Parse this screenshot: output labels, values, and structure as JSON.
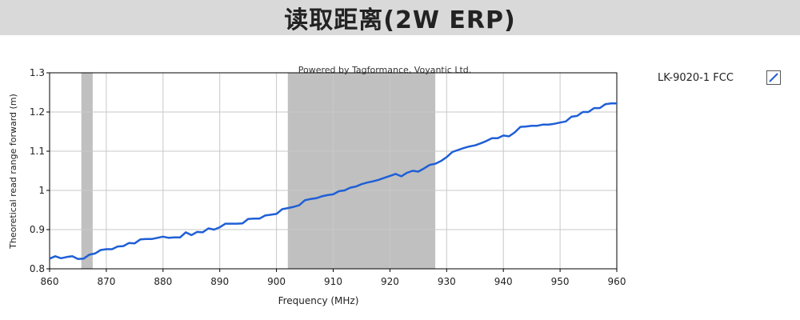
{
  "banner": {
    "title": "读取距离(2W ERP)"
  },
  "chart_data": {
    "type": "line",
    "title": "",
    "watermark": "Powered by Tagformance, Voyantic Ltd.",
    "xlabel": "Frequency (MHz)",
    "ylabel": "Theoretical read range forward (m)",
    "xlim": [
      860,
      960
    ],
    "ylim": [
      0.8,
      1.3
    ],
    "xticks": [
      860,
      870,
      880,
      890,
      900,
      910,
      920,
      930,
      940,
      950,
      960
    ],
    "yticks": [
      0.8,
      0.9,
      1,
      1.1,
      1.2,
      1.3
    ],
    "ytick_labels": [
      "0.8",
      "0.9",
      "1",
      "1.1",
      "1.2",
      "1.3"
    ],
    "grid": true,
    "legend_position": "right",
    "shaded_bands": [
      [
        865.6,
        867.6
      ],
      [
        902,
        928
      ]
    ],
    "band_color": "#c0c0c0",
    "series": [
      {
        "name": "LK-9020-1 FCC",
        "color": "#1f5fd6",
        "x": [
          860,
          861,
          862,
          863,
          864,
          865,
          866,
          867,
          868,
          869,
          870,
          871,
          872,
          873,
          874,
          875,
          876,
          877,
          878,
          879,
          880,
          881,
          882,
          883,
          884,
          885,
          886,
          887,
          888,
          889,
          890,
          891,
          892,
          893,
          894,
          895,
          896,
          897,
          898,
          899,
          900,
          901,
          902,
          903,
          904,
          905,
          906,
          907,
          908,
          909,
          910,
          911,
          912,
          913,
          914,
          915,
          916,
          917,
          918,
          919,
          920,
          921,
          922,
          923,
          924,
          925,
          926,
          927,
          928,
          929,
          930,
          931,
          932,
          933,
          934,
          935,
          936,
          937,
          938,
          939,
          940,
          941,
          942,
          943,
          944,
          945,
          946,
          947,
          948,
          949,
          950,
          951,
          952,
          953,
          954,
          955,
          956,
          957,
          958,
          959,
          960
        ],
        "y": [
          0.826,
          0.832,
          0.827,
          0.83,
          0.832,
          0.825,
          0.826,
          0.836,
          0.839,
          0.848,
          0.85,
          0.85,
          0.857,
          0.858,
          0.866,
          0.865,
          0.875,
          0.876,
          0.876,
          0.879,
          0.882,
          0.879,
          0.88,
          0.88,
          0.893,
          0.886,
          0.894,
          0.893,
          0.903,
          0.9,
          0.906,
          0.915,
          0.915,
          0.915,
          0.916,
          0.927,
          0.928,
          0.928,
          0.936,
          0.938,
          0.94,
          0.952,
          0.955,
          0.958,
          0.962,
          0.975,
          0.978,
          0.98,
          0.985,
          0.988,
          0.99,
          0.998,
          1.0,
          1.007,
          1.01,
          1.016,
          1.02,
          1.023,
          1.027,
          1.032,
          1.037,
          1.042,
          1.036,
          1.045,
          1.05,
          1.048,
          1.056,
          1.065,
          1.068,
          1.075,
          1.085,
          1.098,
          1.103,
          1.108,
          1.112,
          1.115,
          1.12,
          1.126,
          1.133,
          1.133,
          1.14,
          1.138,
          1.148,
          1.162,
          1.163,
          1.165,
          1.165,
          1.168,
          1.168,
          1.17,
          1.173,
          1.176,
          1.188,
          1.19,
          1.2,
          1.2,
          1.21,
          1.21,
          1.22,
          1.222,
          1.222
        ]
      }
    ]
  }
}
